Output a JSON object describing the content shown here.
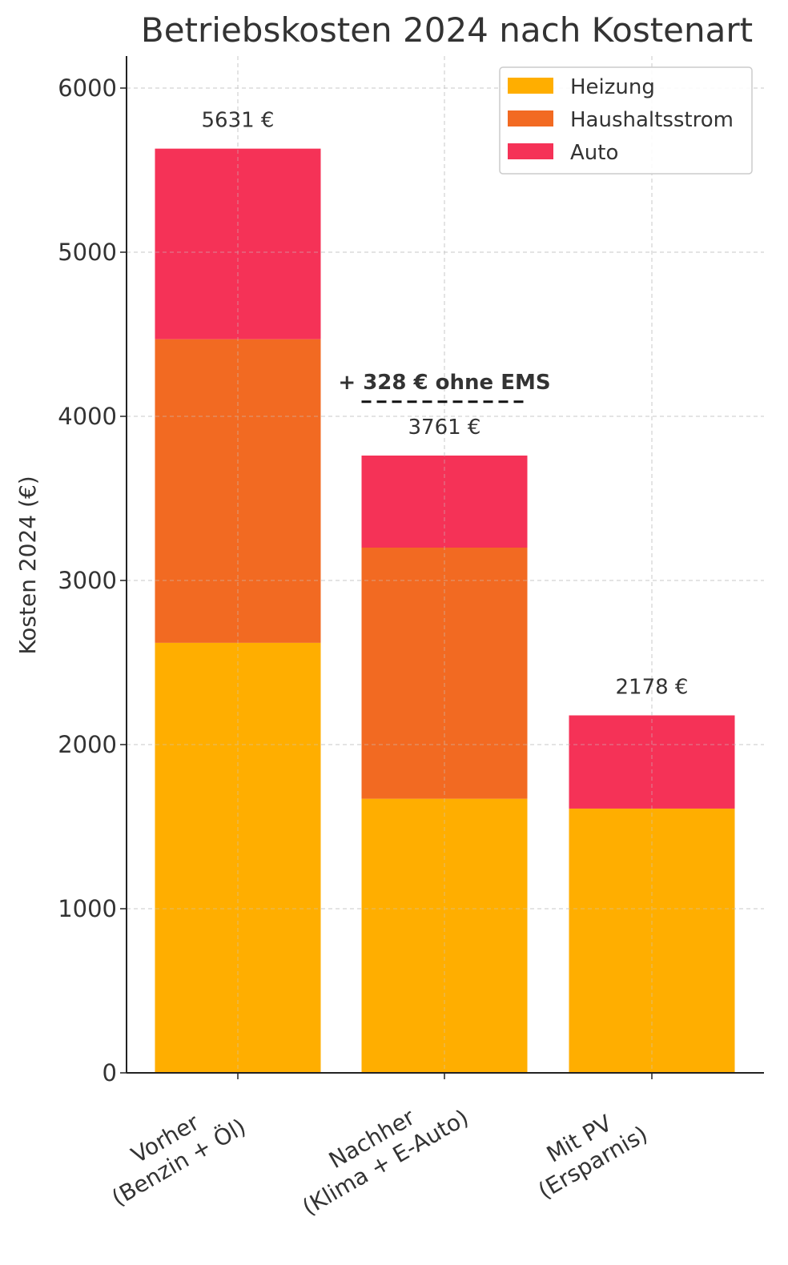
{
  "chart_data": {
    "type": "bar",
    "stacked": true,
    "title": "Betriebskosten 2024 nach Kostenart",
    "xlabel": "",
    "ylabel": "Kosten 2024 (€)",
    "ylim": [
      0,
      6200
    ],
    "yticks": [
      0,
      1000,
      2000,
      3000,
      4000,
      5000,
      6000
    ],
    "ytick_labels": [
      "0",
      "1000",
      "2000",
      "3000",
      "4000",
      "5000",
      "6000"
    ],
    "grid": true,
    "legend_position": "top-right",
    "categories": [
      [
        "Vorher",
        "(Benzin + Öl)"
      ],
      [
        "Nachher",
        "(Klima + E-Auto)"
      ],
      [
        "Mit PV",
        "(Ersparnis)"
      ]
    ],
    "series": [
      {
        "name": "Heizung",
        "color": "#FFAE00",
        "values": [
          2620,
          1670,
          1610
        ]
      },
      {
        "name": "Haushaltsstrom",
        "color": "#F26A22",
        "values": [
          1850,
          1530,
          0
        ]
      },
      {
        "name": "Auto",
        "color": "#F53257",
        "values": [
          1161,
          561,
          568
        ]
      }
    ],
    "totals": [
      5631,
      3761,
      2178
    ],
    "total_labels": [
      "5631 €",
      "3761 €",
      "2178 €"
    ],
    "annotations": [
      {
        "text": "+ 328 € ohne EMS",
        "category_index": 1,
        "value": 4089,
        "style": "dashed-line"
      }
    ]
  }
}
